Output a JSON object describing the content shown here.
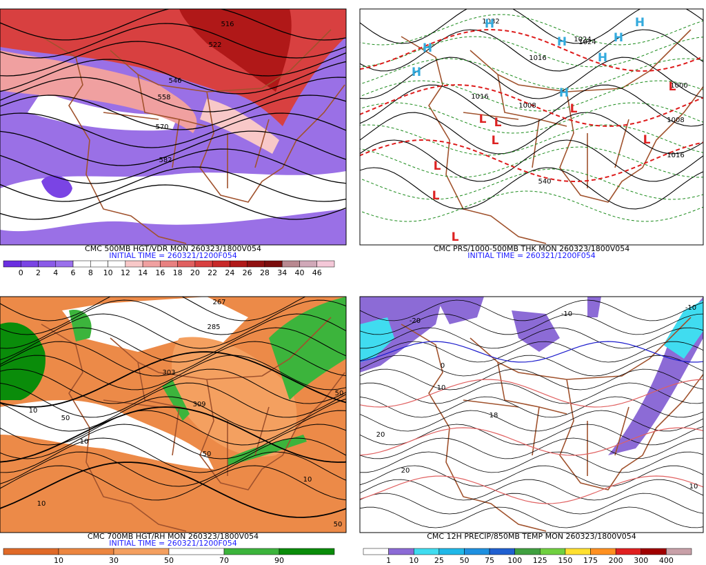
{
  "panels": [
    {
      "caption": "CMC 500MB HGT/VDR MON 260323/1800V054",
      "initial_time": "INITIAL TIME = 260321/1200F054",
      "contour_labels": [
        "516",
        "522",
        "546",
        "558",
        "570",
        "582"
      ],
      "colorbar": {
        "labels": [
          "0",
          "2",
          "4",
          "6",
          "8",
          "10",
          "12",
          "14",
          "16",
          "18",
          "20",
          "22",
          "24",
          "26",
          "28",
          "34",
          "40",
          "46"
        ],
        "colors": [
          "#6a2fe0",
          "#7a44e4",
          "#8a5ae8",
          "#9a70ec",
          "#ffffff",
          "#ffffff",
          "#ffffff",
          "#f8c8c8",
          "#f0a0a0",
          "#e88080",
          "#e06060",
          "#d84040",
          "#c82828",
          "#b01818",
          "#901010",
          "#7a0c0c",
          "#b88890",
          "#d0a8b8",
          "#f4c8d8"
        ]
      }
    },
    {
      "caption": "CMC PRS/1000-500MB THK MON 260323/1800V054",
      "initial_time": "INITIAL TIME = 260321/1200F054",
      "contour_labels": [
        "1032",
        "1024",
        "1016",
        "1024",
        "1016",
        "1008",
        "1000",
        "1008",
        "1016",
        "540"
      ],
      "centers": [
        "H",
        "H",
        "H",
        "H",
        "H",
        "H",
        "H",
        "H",
        "L",
        "L",
        "L",
        "L",
        "L",
        "L",
        "L",
        "L",
        "L"
      ]
    },
    {
      "caption": "CMC 700MB HGT/RH MON 260323/1800V054",
      "initial_time": "INITIAL TIME = 260321/1200F054",
      "contour_labels": [
        "267",
        "285",
        "303",
        "309",
        "10",
        "50",
        "10",
        "10",
        "50",
        "50",
        "10",
        "50"
      ],
      "colorbar": {
        "labels": [
          "10",
          "30",
          "50",
          "70",
          "90"
        ],
        "colors": [
          "#e06a28",
          "#ec8640",
          "#f4a060",
          "#ffffff",
          "#3cb43c",
          "#0a8c0a"
        ]
      }
    },
    {
      "caption": "CMC 12H PRECIP/850MB TEMP MON 260323/1800V054",
      "initial_time": "",
      "contour_labels": [
        "-20",
        "-10",
        "0",
        "10",
        "18",
        "20",
        "20",
        "-10",
        "10"
      ],
      "colorbar": {
        "labels": [
          "1",
          "10",
          "25",
          "50",
          "75",
          "100",
          "125",
          "150",
          "175",
          "200",
          "300",
          "400"
        ],
        "colors": [
          "#ffffff",
          "#8c6bd6",
          "#40dcf0",
          "#20b8e8",
          "#1e90e0",
          "#2060d0",
          "#40a040",
          "#70d040",
          "#ffe030",
          "#ff9020",
          "#e02020",
          "#a00000",
          "#c8a0a8"
        ]
      }
    }
  ]
}
